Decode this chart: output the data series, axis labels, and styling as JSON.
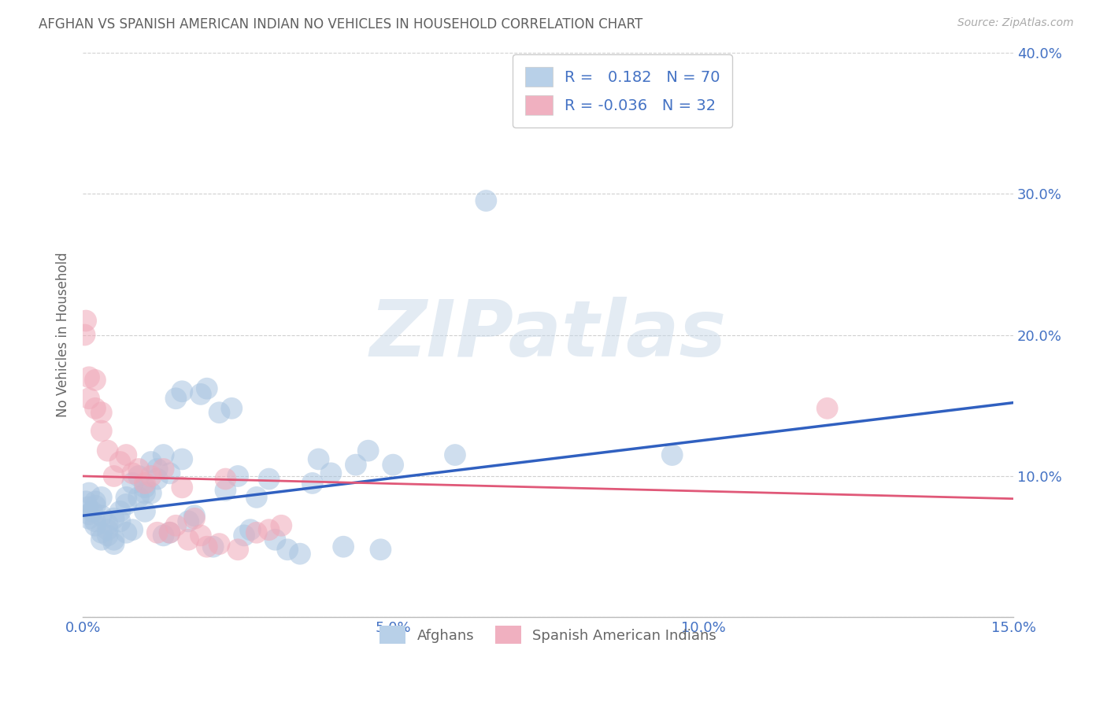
{
  "title": "AFGHAN VS SPANISH AMERICAN INDIAN NO VEHICLES IN HOUSEHOLD CORRELATION CHART",
  "source": "Source: ZipAtlas.com",
  "ylabel": "No Vehicles in Household",
  "xlim": [
    0.0,
    0.15
  ],
  "ylim": [
    0.0,
    0.4
  ],
  "xticks": [
    0.0,
    0.05,
    0.1,
    0.15
  ],
  "yticks": [
    0.0,
    0.1,
    0.2,
    0.3,
    0.4
  ],
  "xtick_labels": [
    "0.0%",
    "5.0%",
    "10.0%",
    "15.0%"
  ],
  "right_ytick_labels": [
    "",
    "10.0%",
    "20.0%",
    "30.0%",
    "40.0%"
  ],
  "watermark": "ZIPatlas",
  "blue_scatter": "#a8c4e0",
  "pink_scatter": "#f0a8b8",
  "blue_line": "#3060c0",
  "pink_line": "#e05878",
  "pink_dash_line": "#c8a0b8",
  "label_color": "#4472c4",
  "title_color": "#606060",
  "source_color": "#aaaaaa",
  "grid_color": "#d0d0d0",
  "afghan_r": 0.182,
  "afghan_n": 70,
  "span_r": -0.036,
  "span_n": 32,
  "afghan_line_y0": 0.072,
  "afghan_line_y1": 0.152,
  "span_line_y0": 0.1,
  "span_line_y1": 0.084,
  "afghan_x": [
    0.0005,
    0.0008,
    0.001,
    0.001,
    0.001,
    0.0015,
    0.002,
    0.002,
    0.002,
    0.002,
    0.003,
    0.003,
    0.003,
    0.003,
    0.004,
    0.004,
    0.004,
    0.005,
    0.005,
    0.005,
    0.006,
    0.006,
    0.007,
    0.007,
    0.007,
    0.008,
    0.008,
    0.009,
    0.009,
    0.01,
    0.01,
    0.01,
    0.011,
    0.011,
    0.012,
    0.012,
    0.013,
    0.013,
    0.014,
    0.014,
    0.015,
    0.016,
    0.016,
    0.017,
    0.018,
    0.019,
    0.02,
    0.021,
    0.022,
    0.023,
    0.024,
    0.025,
    0.026,
    0.027,
    0.028,
    0.03,
    0.031,
    0.033,
    0.035,
    0.037,
    0.038,
    0.04,
    0.042,
    0.044,
    0.046,
    0.048,
    0.05,
    0.06,
    0.065,
    0.095
  ],
  "afghan_y": [
    0.082,
    0.078,
    0.073,
    0.07,
    0.088,
    0.075,
    0.068,
    0.065,
    0.082,
    0.079,
    0.072,
    0.06,
    0.055,
    0.085,
    0.062,
    0.058,
    0.066,
    0.055,
    0.052,
    0.07,
    0.068,
    0.075,
    0.08,
    0.06,
    0.085,
    0.095,
    0.062,
    0.085,
    0.1,
    0.088,
    0.092,
    0.075,
    0.11,
    0.088,
    0.105,
    0.098,
    0.115,
    0.058,
    0.06,
    0.102,
    0.155,
    0.16,
    0.112,
    0.068,
    0.072,
    0.158,
    0.162,
    0.05,
    0.145,
    0.09,
    0.148,
    0.1,
    0.058,
    0.062,
    0.085,
    0.098,
    0.055,
    0.048,
    0.045,
    0.095,
    0.112,
    0.102,
    0.05,
    0.108,
    0.118,
    0.048,
    0.108,
    0.115,
    0.295,
    0.115
  ],
  "span_x": [
    0.0003,
    0.0005,
    0.001,
    0.001,
    0.002,
    0.002,
    0.003,
    0.003,
    0.004,
    0.005,
    0.006,
    0.007,
    0.008,
    0.009,
    0.01,
    0.011,
    0.012,
    0.013,
    0.014,
    0.015,
    0.016,
    0.017,
    0.018,
    0.019,
    0.02,
    0.022,
    0.023,
    0.025,
    0.028,
    0.03,
    0.032,
    0.12
  ],
  "span_y": [
    0.2,
    0.21,
    0.17,
    0.155,
    0.168,
    0.148,
    0.132,
    0.145,
    0.118,
    0.1,
    0.11,
    0.115,
    0.102,
    0.105,
    0.095,
    0.1,
    0.06,
    0.105,
    0.06,
    0.065,
    0.092,
    0.055,
    0.07,
    0.058,
    0.05,
    0.052,
    0.098,
    0.048,
    0.06,
    0.062,
    0.065,
    0.148
  ]
}
